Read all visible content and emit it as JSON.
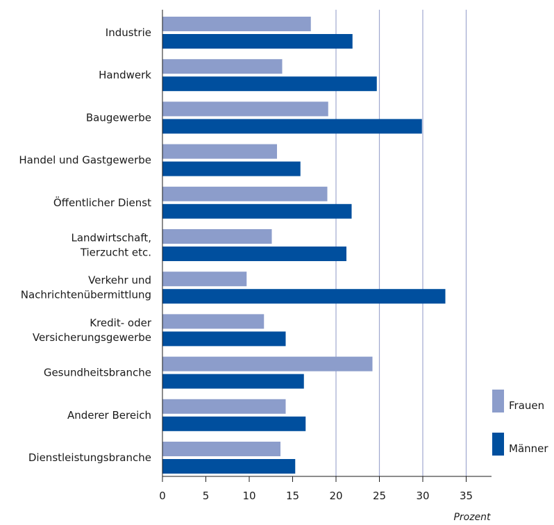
{
  "chart_data": {
    "type": "bar",
    "orientation": "horizontal",
    "categories": [
      [
        "Industrie"
      ],
      [
        "Handwerk"
      ],
      [
        "Baugewerbe"
      ],
      [
        "Handel und Gastgewerbe"
      ],
      [
        "Öffentlicher Dienst"
      ],
      [
        "Landwirtschaft,",
        "Tierzucht etc."
      ],
      [
        "Verkehr und",
        "Nachrichtenübermittlung"
      ],
      [
        "Kredit- oder",
        "Versicherungsgewerbe"
      ],
      [
        "Gesundheitsbranche"
      ],
      [
        "Anderer Bereich"
      ],
      [
        "Dienstleistungsbranche"
      ]
    ],
    "series": [
      {
        "name": "Frauen",
        "color": "#8c9dcb",
        "values": [
          17.1,
          13.8,
          19.1,
          13.2,
          19.0,
          12.6,
          9.7,
          11.7,
          24.2,
          14.2,
          13.6
        ]
      },
      {
        "name": "Männer",
        "color": "#004f9e",
        "values": [
          21.9,
          24.7,
          29.9,
          15.9,
          21.8,
          21.2,
          32.6,
          14.2,
          16.3,
          16.5,
          15.3
        ]
      }
    ],
    "xlabel": "Prozent",
    "ylabel": "",
    "xlim": [
      0,
      38
    ],
    "xticks": [
      0,
      5,
      10,
      15,
      20,
      25,
      30,
      35
    ],
    "xtick_labels": [
      "0",
      "5",
      "10",
      "15",
      "20",
      "25",
      "30",
      "35"
    ],
    "gridlines": [
      20,
      25,
      30,
      35
    ],
    "gridline_color": "#9fa8cf",
    "legend_position": "right"
  }
}
